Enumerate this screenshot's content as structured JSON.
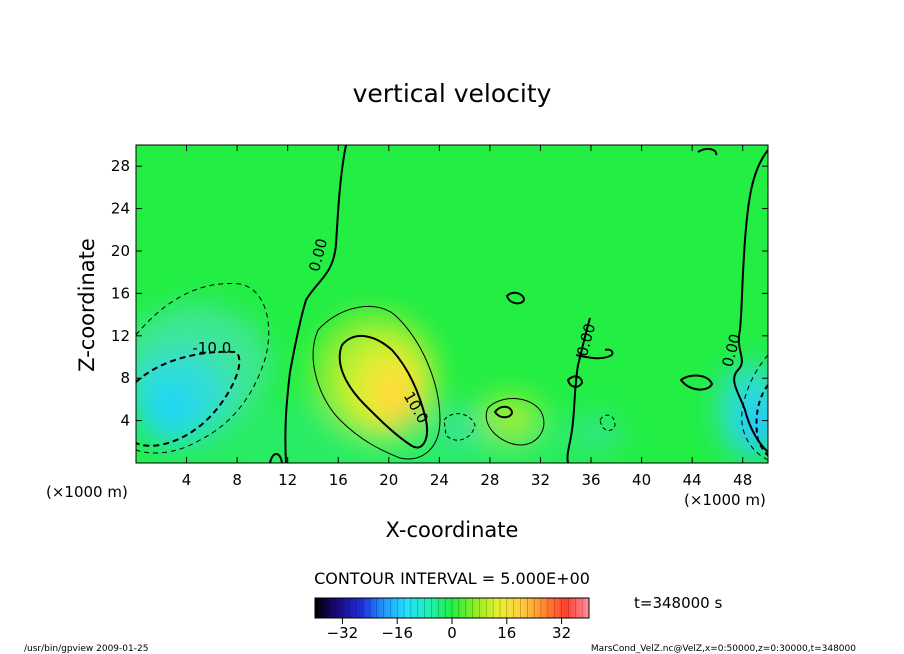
{
  "chart_data": {
    "type": "heatmap",
    "title": "vertical velocity",
    "xlabel": "X-coordinate",
    "ylabel": "Z-coordinate",
    "x_unit_label": "(×1000 m)",
    "y_unit_label": "(×1000 m)",
    "xlim": [
      0,
      50
    ],
    "ylim": [
      0,
      30
    ],
    "x_ticks": [
      4,
      8,
      12,
      16,
      20,
      24,
      28,
      32,
      36,
      40,
      44,
      48
    ],
    "y_ticks": [
      4,
      8,
      12,
      16,
      20,
      24,
      28
    ],
    "contour_interval_text": "CONTOUR INTERVAL = 5.000E+00",
    "contour_labels": [
      {
        "text": "0.00",
        "x": 14.8,
        "z": 19.5
      },
      {
        "text": "-10.0",
        "x": 6.0,
        "z": 10.4
      },
      {
        "text": "10.0",
        "x": 21.8,
        "z": 5.0
      },
      {
        "text": "0.00",
        "x": 36.0,
        "z": 11.5
      },
      {
        "text": "0.00",
        "x": 47.5,
        "z": 10.5
      }
    ],
    "colorbar": {
      "range": [
        -40,
        40
      ],
      "ticks": [
        -32,
        -16,
        0,
        16,
        32
      ],
      "stops": [
        "#000000",
        "#1a0a80",
        "#1f2cd8",
        "#2196ff",
        "#24e0ff",
        "#20f0b0",
        "#22ee44",
        "#8cee22",
        "#e8f030",
        "#ffd040",
        "#ff8c30",
        "#ff4030",
        "#ff90a0"
      ]
    },
    "features": [
      {
        "kind": "updraft",
        "x": 19.5,
        "z": 7.0,
        "peak": 15
      },
      {
        "kind": "downdraft",
        "x": 3.5,
        "z": 4.5,
        "peak": -14
      },
      {
        "kind": "downdraft",
        "x": 49.5,
        "z": 3.5,
        "peak": -14
      },
      {
        "kind": "updraft",
        "x": 29.5,
        "z": 4.5,
        "peak": 5
      }
    ],
    "time_label": "t=348000 s"
  },
  "footer": {
    "left": "/usr/bin/gpview  2009-01-25",
    "right": "MarsCond_VelZ.nc@VelZ,x=0:50000,z=0:30000,t=348000"
  }
}
